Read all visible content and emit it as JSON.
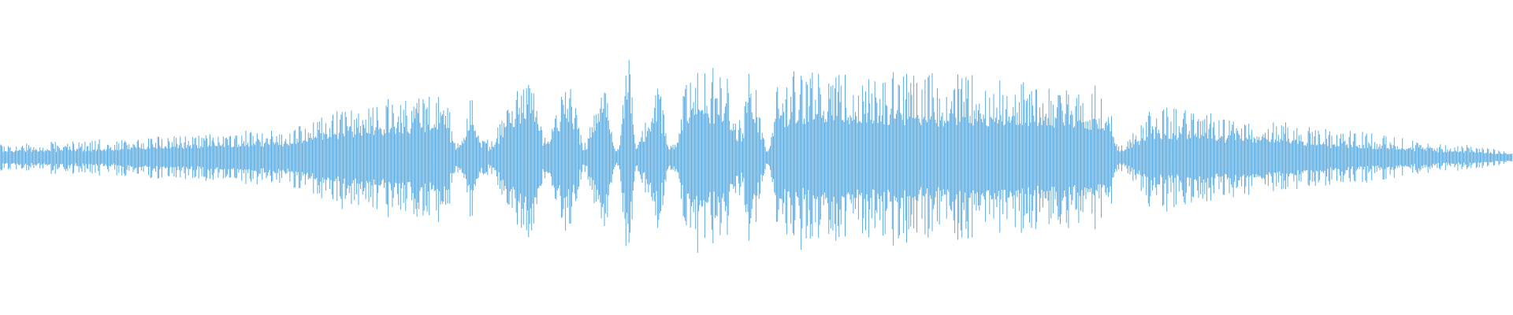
{
  "waveform": {
    "color": "#5dade2",
    "background": "#ffffff",
    "envelope": [
      {
        "t": 0.0,
        "peak": 0.09,
        "core": 0.05
      },
      {
        "t": 0.064,
        "peak": 0.12,
        "core": 0.06
      },
      {
        "t": 0.128,
        "peak": 0.15,
        "core": 0.09
      },
      {
        "t": 0.179,
        "peak": 0.18,
        "core": 0.11
      },
      {
        "t": 0.242,
        "peak": 0.37,
        "core": 0.21
      },
      {
        "t": 0.287,
        "peak": 0.43,
        "core": 0.25
      },
      {
        "t": 0.295,
        "peak": 0.46,
        "core": 0.28
      },
      {
        "t": 0.3,
        "peak": 0.12,
        "core": 0.06
      },
      {
        "t": 0.313,
        "peak": 0.43,
        "core": 0.22
      },
      {
        "t": 0.32,
        "peak": 0.12,
        "core": 0.06
      },
      {
        "t": 0.351,
        "peak": 0.55,
        "core": 0.37
      },
      {
        "t": 0.36,
        "peak": 0.18,
        "core": 0.1
      },
      {
        "t": 0.376,
        "peak": 0.49,
        "core": 0.31
      },
      {
        "t": 0.386,
        "peak": 0.12,
        "core": 0.06
      },
      {
        "t": 0.399,
        "peak": 0.49,
        "core": 0.34
      },
      {
        "t": 0.408,
        "peak": 0.09,
        "core": 0.05
      },
      {
        "t": 0.415,
        "peak": 0.67,
        "core": 0.49
      },
      {
        "t": 0.421,
        "peak": 0.12,
        "core": 0.06
      },
      {
        "t": 0.434,
        "peak": 0.55,
        "core": 0.31
      },
      {
        "t": 0.443,
        "peak": 0.12,
        "core": 0.06
      },
      {
        "t": 0.459,
        "peak": 0.64,
        "core": 0.37
      },
      {
        "t": 0.485,
        "peak": 0.55,
        "core": 0.25
      },
      {
        "t": 0.488,
        "peak": 0.25,
        "core": 0.12
      },
      {
        "t": 0.497,
        "peak": 0.61,
        "core": 0.34
      },
      {
        "t": 0.507,
        "peak": 0.09,
        "core": 0.05
      },
      {
        "t": 0.517,
        "peak": 0.61,
        "core": 0.31
      },
      {
        "t": 0.574,
        "peak": 0.58,
        "core": 0.31
      },
      {
        "t": 0.638,
        "peak": 0.55,
        "core": 0.31
      },
      {
        "t": 0.702,
        "peak": 0.49,
        "core": 0.28
      },
      {
        "t": 0.733,
        "peak": 0.46,
        "core": 0.25
      },
      {
        "t": 0.739,
        "peak": 0.09,
        "core": 0.05
      },
      {
        "t": 0.765,
        "peak": 0.37,
        "core": 0.18
      },
      {
        "t": 0.829,
        "peak": 0.25,
        "core": 0.15
      },
      {
        "t": 0.893,
        "peak": 0.18,
        "core": 0.09
      },
      {
        "t": 0.957,
        "peak": 0.09,
        "core": 0.05
      },
      {
        "t": 1.0,
        "peak": 0.05,
        "core": 0.03
      }
    ]
  }
}
